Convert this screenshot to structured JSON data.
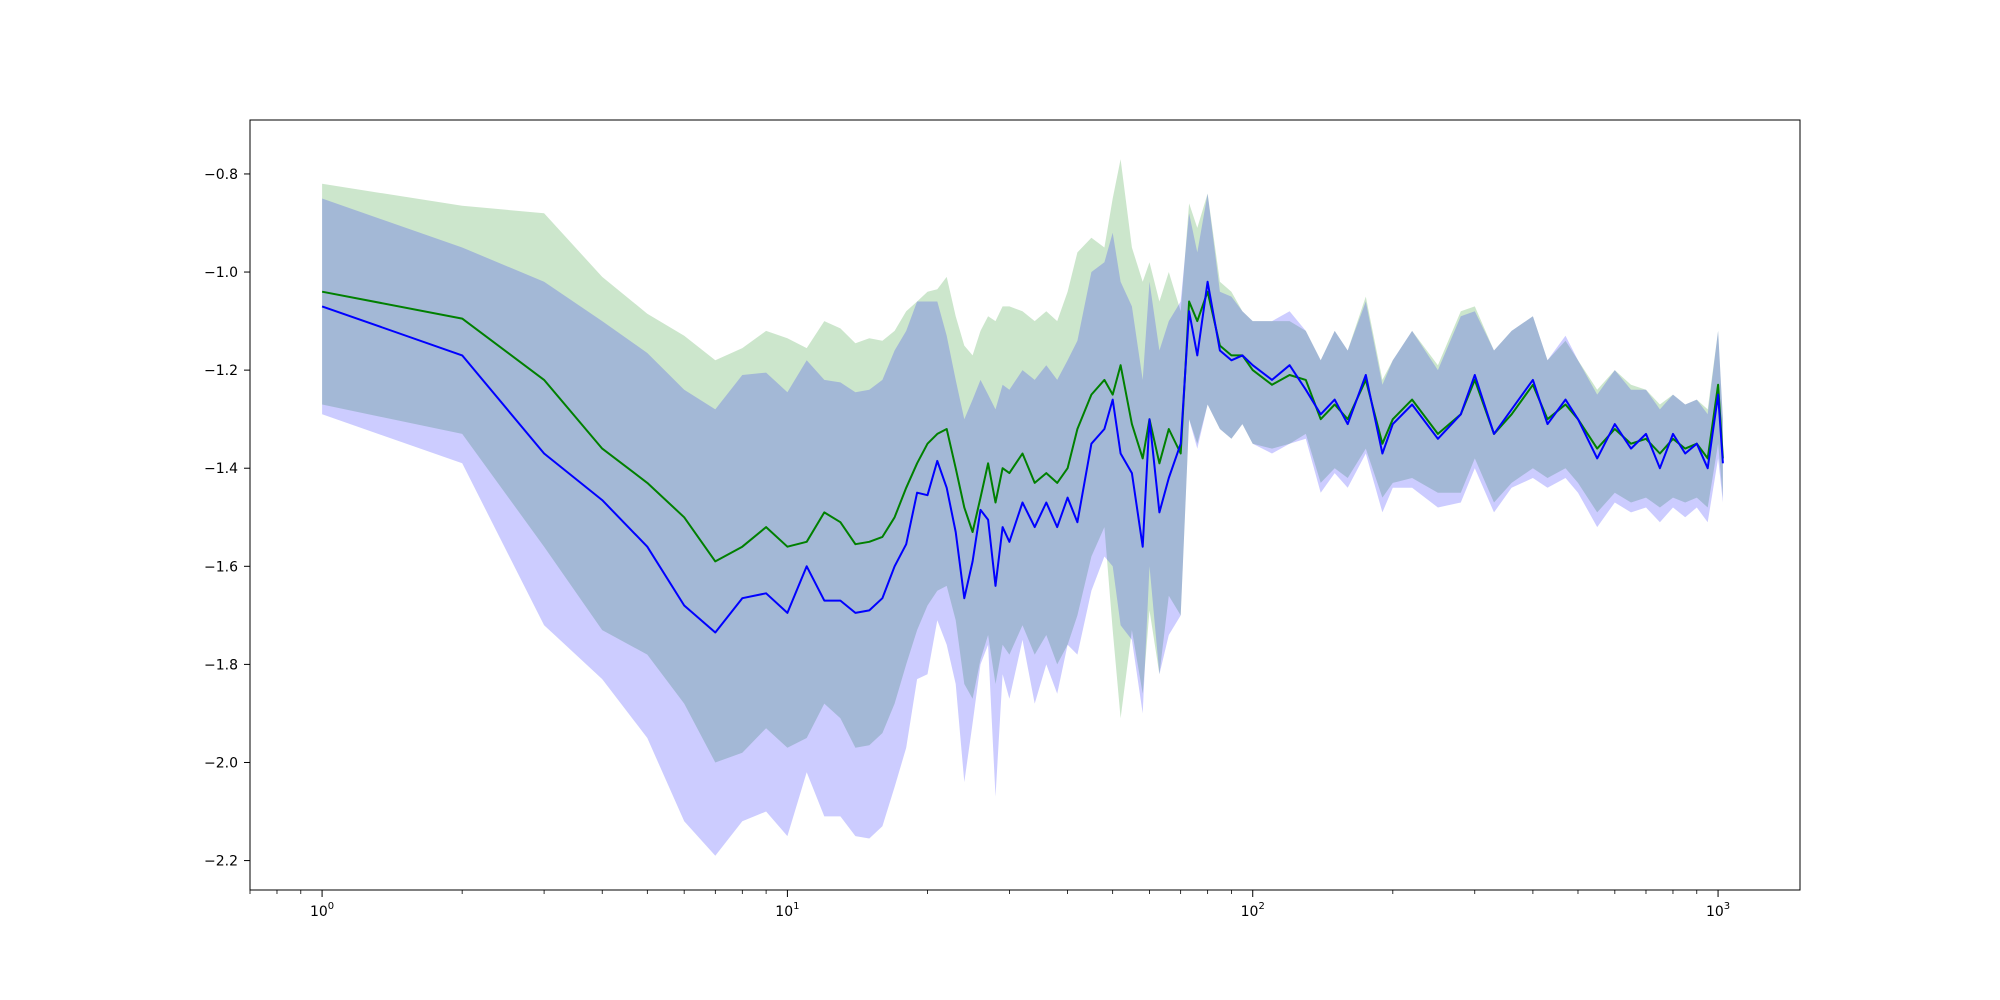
{
  "chart_data": {
    "type": "line",
    "title": "",
    "xlabel": "",
    "ylabel": "",
    "xscale": "log",
    "xlim": [
      0.7,
      1500
    ],
    "ylim": [
      -2.26,
      -0.69
    ],
    "grid": false,
    "legend": "none",
    "x_ticks": [
      {
        "value": 1,
        "base": "10",
        "exp": "0"
      },
      {
        "value": 10,
        "base": "10",
        "exp": "1"
      },
      {
        "value": 100,
        "base": "10",
        "exp": "2"
      },
      {
        "value": 1000,
        "base": "10",
        "exp": "3"
      }
    ],
    "y_ticks": [
      {
        "value": -0.8,
        "label": "−0.8"
      },
      {
        "value": -1.0,
        "label": "−1.0"
      },
      {
        "value": -1.2,
        "label": "−1.2"
      },
      {
        "value": -1.4,
        "label": "−1.4"
      },
      {
        "value": -1.6,
        "label": "−1.6"
      },
      {
        "value": -1.8,
        "label": "−1.8"
      },
      {
        "value": -2.0,
        "label": "−2.0"
      },
      {
        "value": -2.2,
        "label": "−2.2"
      }
    ],
    "series": [
      {
        "color": "#008000",
        "band_color": "#008000",
        "x": [
          1,
          2,
          3,
          4,
          5,
          6,
          7,
          8,
          9,
          10,
          11,
          12,
          13,
          14,
          15,
          16,
          17,
          18,
          19,
          20,
          21,
          22,
          23,
          24,
          25,
          26,
          27,
          28,
          29,
          30,
          32,
          34,
          36,
          38,
          40,
          42,
          45,
          48,
          50,
          52,
          55,
          58,
          60,
          63,
          66,
          70,
          73,
          76,
          80,
          85,
          90,
          95,
          100,
          110,
          120,
          130,
          140,
          150,
          160,
          175,
          190,
          200,
          220,
          250,
          280,
          300,
          330,
          360,
          400,
          430,
          470,
          500,
          550,
          600,
          650,
          700,
          750,
          800,
          850,
          900,
          950,
          1000,
          1024
        ],
        "y": [
          -1.04,
          -1.095,
          -1.22,
          -1.36,
          -1.43,
          -1.5,
          -1.59,
          -1.56,
          -1.52,
          -1.56,
          -1.55,
          -1.49,
          -1.51,
          -1.555,
          -1.55,
          -1.54,
          -1.5,
          -1.44,
          -1.39,
          -1.35,
          -1.33,
          -1.32,
          -1.4,
          -1.48,
          -1.53,
          -1.46,
          -1.39,
          -1.47,
          -1.4,
          -1.41,
          -1.37,
          -1.43,
          -1.41,
          -1.43,
          -1.4,
          -1.32,
          -1.25,
          -1.22,
          -1.25,
          -1.19,
          -1.31,
          -1.38,
          -1.3,
          -1.39,
          -1.32,
          -1.37,
          -1.06,
          -1.1,
          -1.04,
          -1.15,
          -1.17,
          -1.17,
          -1.2,
          -1.23,
          -1.21,
          -1.22,
          -1.3,
          -1.27,
          -1.3,
          -1.22,
          -1.35,
          -1.3,
          -1.26,
          -1.33,
          -1.29,
          -1.22,
          -1.33,
          -1.29,
          -1.23,
          -1.3,
          -1.27,
          -1.3,
          -1.36,
          -1.32,
          -1.35,
          -1.34,
          -1.37,
          -1.34,
          -1.36,
          -1.35,
          -1.38,
          -1.23,
          -1.38
        ],
        "upper": [
          -0.82,
          -0.865,
          -0.88,
          -1.01,
          -1.085,
          -1.13,
          -1.18,
          -1.155,
          -1.12,
          -1.135,
          -1.155,
          -1.1,
          -1.115,
          -1.145,
          -1.135,
          -1.14,
          -1.12,
          -1.08,
          -1.06,
          -1.04,
          -1.035,
          -1.01,
          -1.09,
          -1.15,
          -1.17,
          -1.12,
          -1.09,
          -1.1,
          -1.07,
          -1.07,
          -1.08,
          -1.1,
          -1.08,
          -1.1,
          -1.04,
          -0.96,
          -0.93,
          -0.95,
          -0.85,
          -0.77,
          -0.95,
          -1.02,
          -0.98,
          -1.06,
          -1.0,
          -1.08,
          -0.86,
          -0.91,
          -0.84,
          -1.02,
          -1.04,
          -1.08,
          -1.1,
          -1.1,
          -1.1,
          -1.12,
          -1.18,
          -1.12,
          -1.16,
          -1.05,
          -1.22,
          -1.18,
          -1.12,
          -1.19,
          -1.08,
          -1.07,
          -1.16,
          -1.12,
          -1.09,
          -1.18,
          -1.14,
          -1.18,
          -1.24,
          -1.2,
          -1.23,
          -1.24,
          -1.27,
          -1.25,
          -1.27,
          -1.26,
          -1.28,
          -1.12,
          -1.3
        ],
        "lower": [
          -1.27,
          -1.33,
          -1.56,
          -1.73,
          -1.78,
          -1.88,
          -2.0,
          -1.98,
          -1.93,
          -1.97,
          -1.95,
          -1.88,
          -1.91,
          -1.97,
          -1.965,
          -1.94,
          -1.88,
          -1.8,
          -1.73,
          -1.68,
          -1.65,
          -1.64,
          -1.71,
          -1.84,
          -1.87,
          -1.79,
          -1.74,
          -1.84,
          -1.76,
          -1.78,
          -1.72,
          -1.78,
          -1.74,
          -1.8,
          -1.76,
          -1.7,
          -1.58,
          -1.52,
          -1.73,
          -1.91,
          -1.73,
          -1.86,
          -1.69,
          -1.82,
          -1.66,
          -1.7,
          -1.3,
          -1.35,
          -1.27,
          -1.32,
          -1.34,
          -1.31,
          -1.35,
          -1.36,
          -1.35,
          -1.33,
          -1.43,
          -1.4,
          -1.42,
          -1.36,
          -1.46,
          -1.43,
          -1.42,
          -1.45,
          -1.45,
          -1.38,
          -1.47,
          -1.43,
          -1.4,
          -1.42,
          -1.4,
          -1.43,
          -1.49,
          -1.45,
          -1.47,
          -1.46,
          -1.48,
          -1.46,
          -1.47,
          -1.46,
          -1.48,
          -1.35,
          -1.46
        ]
      },
      {
        "color": "#0000ff",
        "band_color": "#0000ff",
        "x": [
          1,
          2,
          3,
          4,
          5,
          6,
          7,
          8,
          9,
          10,
          11,
          12,
          13,
          14,
          15,
          16,
          17,
          18,
          19,
          20,
          21,
          22,
          23,
          24,
          25,
          26,
          27,
          28,
          29,
          30,
          32,
          34,
          36,
          38,
          40,
          42,
          45,
          48,
          50,
          52,
          55,
          58,
          60,
          63,
          66,
          70,
          73,
          76,
          80,
          85,
          90,
          95,
          100,
          110,
          120,
          130,
          140,
          150,
          160,
          175,
          190,
          200,
          220,
          250,
          280,
          300,
          330,
          360,
          400,
          430,
          470,
          500,
          550,
          600,
          650,
          700,
          750,
          800,
          850,
          900,
          950,
          1000,
          1024
        ],
        "y": [
          -1.07,
          -1.17,
          -1.37,
          -1.465,
          -1.56,
          -1.68,
          -1.735,
          -1.665,
          -1.655,
          -1.695,
          -1.6,
          -1.67,
          -1.67,
          -1.695,
          -1.69,
          -1.665,
          -1.6,
          -1.555,
          -1.45,
          -1.455,
          -1.385,
          -1.44,
          -1.53,
          -1.665,
          -1.59,
          -1.485,
          -1.505,
          -1.64,
          -1.52,
          -1.55,
          -1.47,
          -1.52,
          -1.47,
          -1.52,
          -1.46,
          -1.51,
          -1.35,
          -1.32,
          -1.26,
          -1.37,
          -1.41,
          -1.56,
          -1.3,
          -1.49,
          -1.42,
          -1.35,
          -1.08,
          -1.17,
          -1.02,
          -1.16,
          -1.18,
          -1.17,
          -1.19,
          -1.22,
          -1.19,
          -1.24,
          -1.29,
          -1.26,
          -1.31,
          -1.21,
          -1.37,
          -1.31,
          -1.27,
          -1.34,
          -1.29,
          -1.21,
          -1.33,
          -1.28,
          -1.22,
          -1.31,
          -1.26,
          -1.3,
          -1.38,
          -1.31,
          -1.36,
          -1.33,
          -1.4,
          -1.33,
          -1.37,
          -1.35,
          -1.4,
          -1.25,
          -1.39
        ],
        "upper": [
          -0.85,
          -0.95,
          -1.02,
          -1.1,
          -1.165,
          -1.24,
          -1.28,
          -1.21,
          -1.205,
          -1.245,
          -1.18,
          -1.22,
          -1.225,
          -1.245,
          -1.24,
          -1.22,
          -1.16,
          -1.12,
          -1.06,
          -1.06,
          -1.06,
          -1.13,
          -1.22,
          -1.3,
          -1.26,
          -1.22,
          -1.25,
          -1.28,
          -1.23,
          -1.24,
          -1.2,
          -1.22,
          -1.19,
          -1.22,
          -1.18,
          -1.14,
          -1.0,
          -0.98,
          -0.92,
          -1.02,
          -1.07,
          -1.22,
          -1.02,
          -1.16,
          -1.1,
          -1.06,
          -0.88,
          -0.96,
          -0.84,
          -1.04,
          -1.05,
          -1.08,
          -1.1,
          -1.1,
          -1.08,
          -1.12,
          -1.18,
          -1.12,
          -1.16,
          -1.06,
          -1.23,
          -1.18,
          -1.12,
          -1.2,
          -1.09,
          -1.08,
          -1.16,
          -1.12,
          -1.09,
          -1.18,
          -1.13,
          -1.18,
          -1.25,
          -1.2,
          -1.24,
          -1.24,
          -1.28,
          -1.25,
          -1.27,
          -1.26,
          -1.29,
          -1.12,
          -1.3
        ],
        "lower": [
          -1.29,
          -1.39,
          -1.72,
          -1.83,
          -1.95,
          -2.12,
          -2.19,
          -2.12,
          -2.1,
          -2.15,
          -2.02,
          -2.11,
          -2.11,
          -2.15,
          -2.155,
          -2.13,
          -2.05,
          -1.97,
          -1.83,
          -1.82,
          -1.71,
          -1.76,
          -1.84,
          -2.04,
          -1.92,
          -1.8,
          -1.76,
          -2.07,
          -1.82,
          -1.87,
          -1.75,
          -1.88,
          -1.8,
          -1.86,
          -1.76,
          -1.78,
          -1.65,
          -1.58,
          -1.6,
          -1.72,
          -1.75,
          -1.9,
          -1.6,
          -1.82,
          -1.74,
          -1.7,
          -1.3,
          -1.36,
          -1.27,
          -1.32,
          -1.34,
          -1.31,
          -1.35,
          -1.37,
          -1.35,
          -1.34,
          -1.45,
          -1.41,
          -1.44,
          -1.37,
          -1.49,
          -1.44,
          -1.44,
          -1.48,
          -1.47,
          -1.4,
          -1.49,
          -1.44,
          -1.42,
          -1.44,
          -1.42,
          -1.45,
          -1.52,
          -1.47,
          -1.49,
          -1.48,
          -1.51,
          -1.48,
          -1.5,
          -1.48,
          -1.51,
          -1.38,
          -1.47
        ]
      }
    ]
  }
}
